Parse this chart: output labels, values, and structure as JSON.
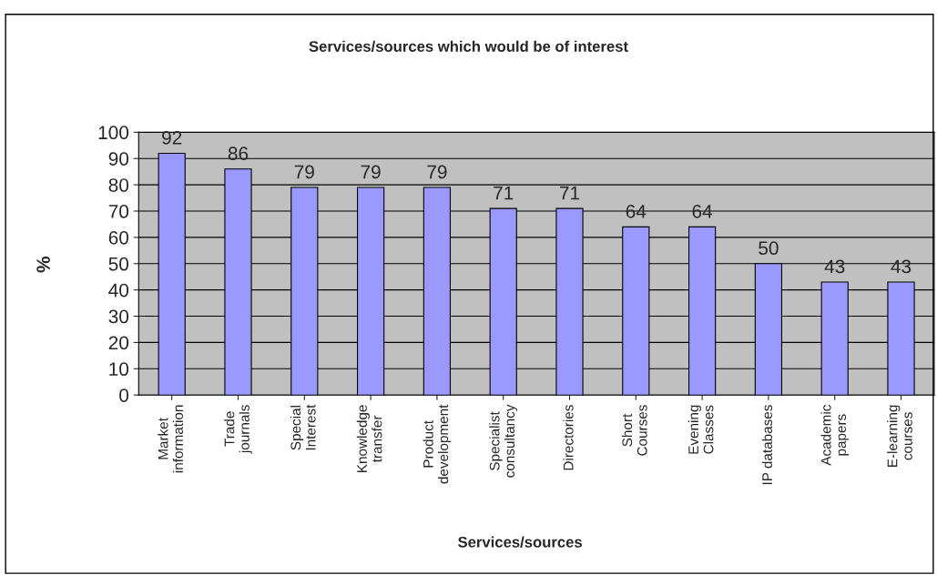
{
  "chart_data": {
    "type": "bar",
    "title": "Services/sources which would be of interest",
    "xlabel": "Services/sources",
    "ylabel": "%",
    "categories": [
      "Market\ninformation",
      "Trade\njournals",
      "Special\nInterest",
      "Knowledge\ntransfer",
      "Product\ndevelopment",
      "Specialist\nconsultancy",
      "Directories",
      "Short\nCourses",
      "Evening\nClasses",
      "IP databases",
      "Academic\npapers",
      "E-learning\ncourses"
    ],
    "values": [
      92,
      86,
      79,
      79,
      79,
      71,
      71,
      64,
      64,
      50,
      43,
      43
    ],
    "color": "#9999ff",
    "ylim": [
      0,
      100
    ],
    "yticks": [
      0,
      10,
      20,
      30,
      40,
      50,
      60,
      70,
      80,
      90,
      100
    ],
    "grid": "y",
    "data_labels": true
  }
}
